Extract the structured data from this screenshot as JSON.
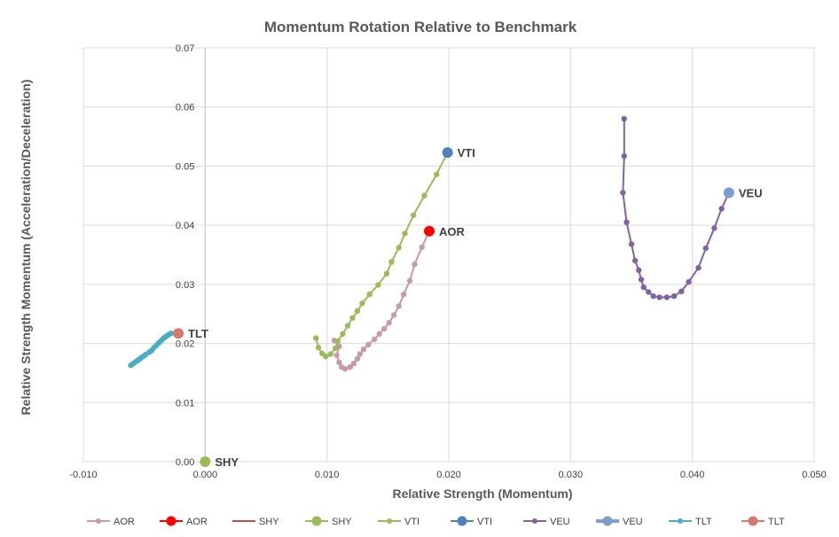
{
  "chart_data": {
    "type": "scatter",
    "title": "Momentum Rotation Relative to Benchmark",
    "xlabel": "Relative Strength (Momentum)",
    "ylabel": "Relative Strength Momentum (Acceleration/Deceleration)",
    "xlim": [
      -0.01,
      0.05
    ],
    "ylim": [
      0.0,
      0.07
    ],
    "x_ticks": [
      "-0.010",
      "0.000",
      "0.010",
      "0.020",
      "0.030",
      "0.040",
      "0.050"
    ],
    "y_ticks": [
      "0.00",
      "0.01",
      "0.02",
      "0.03",
      "0.04",
      "0.05",
      "0.06",
      "0.07"
    ],
    "grid": true,
    "legend_position": "bottom",
    "series": [
      {
        "name": "AOR",
        "color": "#c79aa8",
        "points": [
          [
            0.0106,
            0.0205
          ],
          [
            0.011,
            0.0195
          ],
          [
            0.0108,
            0.018
          ],
          [
            0.011,
            0.0168
          ],
          [
            0.0112,
            0.016
          ],
          [
            0.0115,
            0.0157
          ],
          [
            0.0119,
            0.016
          ],
          [
            0.0122,
            0.0166
          ],
          [
            0.0125,
            0.0174
          ],
          [
            0.0127,
            0.0182
          ],
          [
            0.013,
            0.019
          ],
          [
            0.0134,
            0.0198
          ],
          [
            0.0139,
            0.0207
          ],
          [
            0.0143,
            0.0216
          ],
          [
            0.0147,
            0.0225
          ],
          [
            0.0151,
            0.0235
          ],
          [
            0.0155,
            0.0248
          ],
          [
            0.0159,
            0.0263
          ],
          [
            0.0163,
            0.0283
          ],
          [
            0.0168,
            0.0306
          ],
          [
            0.0172,
            0.0334
          ],
          [
            0.0178,
            0.0363
          ],
          [
            0.0184,
            0.039
          ]
        ]
      },
      {
        "name": "AOR",
        "color": "#ff0000",
        "points": [
          [
            0.0184,
            0.039
          ]
        ]
      },
      {
        "name": "SHY",
        "color": "#c0504d",
        "points": []
      },
      {
        "name": "SHY",
        "color": "#9bbb59",
        "points": [
          [
            0.0,
            0.0
          ]
        ]
      },
      {
        "name": "VTI",
        "color": "#9bbb59",
        "points": [
          [
            0.0091,
            0.0209
          ],
          [
            0.0093,
            0.0193
          ],
          [
            0.0096,
            0.0183
          ],
          [
            0.0099,
            0.0178
          ],
          [
            0.0103,
            0.0182
          ],
          [
            0.0107,
            0.0192
          ],
          [
            0.0109,
            0.0204
          ],
          [
            0.0113,
            0.0216
          ],
          [
            0.0117,
            0.023
          ],
          [
            0.0121,
            0.0243
          ],
          [
            0.0125,
            0.0255
          ],
          [
            0.0129,
            0.0268
          ],
          [
            0.0135,
            0.0283
          ],
          [
            0.0142,
            0.0299
          ],
          [
            0.0149,
            0.0318
          ],
          [
            0.0153,
            0.0338
          ],
          [
            0.0159,
            0.0362
          ],
          [
            0.0164,
            0.0386
          ],
          [
            0.0171,
            0.0417
          ],
          [
            0.018,
            0.045
          ],
          [
            0.019,
            0.0486
          ],
          [
            0.0199,
            0.0523
          ]
        ]
      },
      {
        "name": "VTI",
        "color": "#4f81bd",
        "points": [
          [
            0.0199,
            0.0523
          ]
        ]
      },
      {
        "name": "VEU",
        "color": "#8064a2",
        "points": [
          [
            0.0344,
            0.058
          ],
          [
            0.0344,
            0.0517
          ],
          [
            0.0343,
            0.0455
          ],
          [
            0.0346,
            0.0405
          ],
          [
            0.035,
            0.0368
          ],
          [
            0.0353,
            0.034
          ],
          [
            0.0356,
            0.0324
          ],
          [
            0.0358,
            0.0308
          ],
          [
            0.036,
            0.0295
          ],
          [
            0.0364,
            0.0287
          ],
          [
            0.0368,
            0.028
          ],
          [
            0.0373,
            0.0278
          ],
          [
            0.0379,
            0.0278
          ],
          [
            0.0385,
            0.028
          ],
          [
            0.0391,
            0.0288
          ],
          [
            0.0397,
            0.0304
          ],
          [
            0.0405,
            0.0328
          ],
          [
            0.0411,
            0.0361
          ],
          [
            0.0418,
            0.0395
          ],
          [
            0.0424,
            0.0428
          ],
          [
            0.043,
            0.0455
          ]
        ]
      },
      {
        "name": "VEU",
        "color": "#7c9dcd",
        "points": [
          [
            0.043,
            0.0455
          ]
        ]
      },
      {
        "name": "TLT",
        "color": "#4bacc6",
        "points": [
          [
            -0.0061,
            0.0163
          ],
          [
            -0.0059,
            0.0166
          ],
          [
            -0.0057,
            0.0169
          ],
          [
            -0.0055,
            0.0172
          ],
          [
            -0.0053,
            0.0175
          ],
          [
            -0.0051,
            0.0178
          ],
          [
            -0.0049,
            0.0181
          ],
          [
            -0.0046,
            0.0185
          ],
          [
            -0.0044,
            0.0188
          ],
          [
            -0.0042,
            0.0193
          ],
          [
            -0.004,
            0.0197
          ],
          [
            -0.0038,
            0.0201
          ],
          [
            -0.0036,
            0.0205
          ],
          [
            -0.0034,
            0.0209
          ],
          [
            -0.0032,
            0.0212
          ],
          [
            -0.003,
            0.0215
          ],
          [
            -0.0028,
            0.0217
          ]
        ]
      },
      {
        "name": "TLT",
        "color": "#d9786f",
        "points": [
          [
            -0.0022,
            0.0217
          ]
        ]
      }
    ],
    "end_labels": [
      {
        "text": "TLT",
        "x": -0.0022,
        "y": 0.0217
      },
      {
        "text": "SHY",
        "x": 0.0,
        "y": 0.0
      },
      {
        "text": "VTI",
        "x": 0.0199,
        "y": 0.0523
      },
      {
        "text": "AOR",
        "x": 0.0184,
        "y": 0.039
      },
      {
        "text": "VEU",
        "x": 0.043,
        "y": 0.0455
      }
    ]
  }
}
